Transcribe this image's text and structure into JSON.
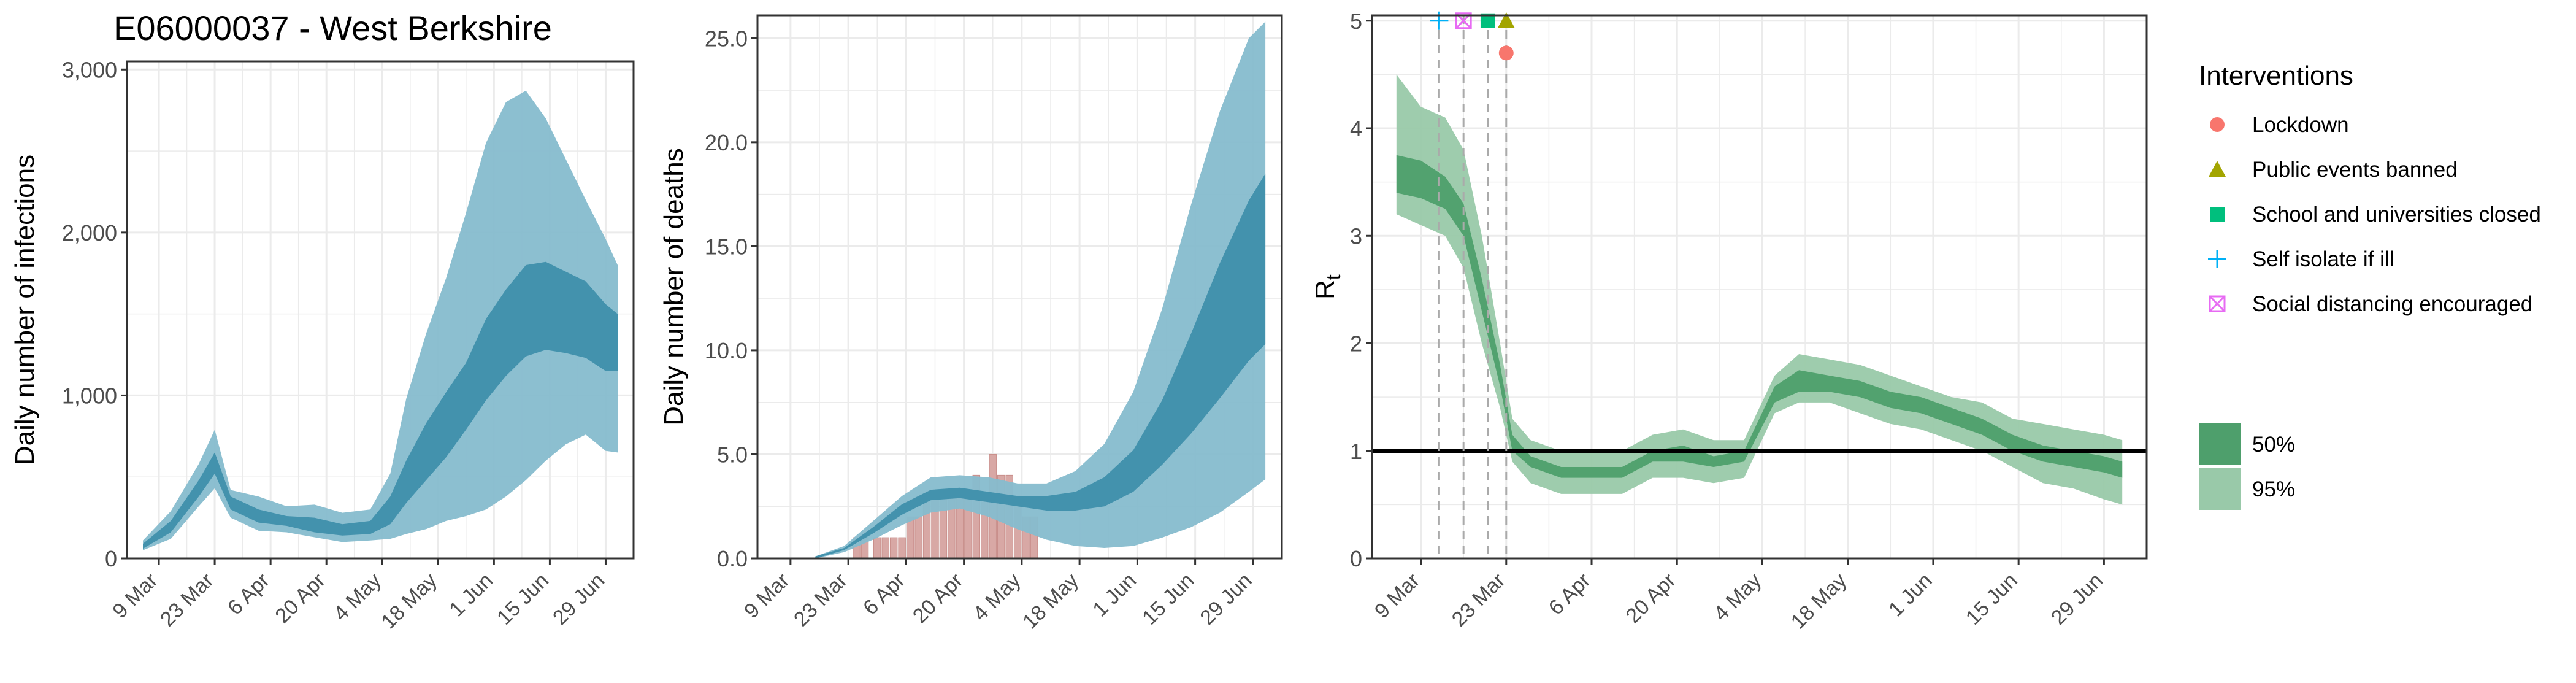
{
  "figure_title": "E06000037 - West Berkshire",
  "colors": {
    "band_outer": "#86BCCD",
    "band_inner": "#3F8FAB",
    "deaths_bar": "#D8A8A5",
    "rt_outer": "#99C9A9",
    "rt_inner": "#4E9F6C",
    "rt_line": "#000000",
    "lockdown": "#F8766D",
    "public_events": "#A3A500",
    "school": "#00BF7D",
    "self_isolate": "#00B0F6",
    "social_distancing": "#E76BF3",
    "panel_border": "#333333",
    "grid": "#EBEBEB"
  },
  "chart_data": [
    {
      "type": "area",
      "title": "",
      "ylabel": "Daily number of infections",
      "xlabel": "",
      "x_tick_labels": [
        "9 Mar",
        "23 Mar",
        "6 Apr",
        "20 Apr",
        "4 May",
        "18 May",
        "1 Jun",
        "15 Jun",
        "29 Jun"
      ],
      "y_tick_labels": [
        "0",
        "1,000",
        "2,000",
        "3,000"
      ],
      "xlim": [
        "2020-03-01",
        "2020-07-06"
      ],
      "ylim": [
        0,
        3050
      ],
      "dates": [
        "2020-03-05",
        "2020-03-12",
        "2020-03-19",
        "2020-03-23",
        "2020-03-27",
        "2020-04-03",
        "2020-04-10",
        "2020-04-17",
        "2020-04-24",
        "2020-05-01",
        "2020-05-06",
        "2020-05-10",
        "2020-05-15",
        "2020-05-20",
        "2020-05-25",
        "2020-05-30",
        "2020-06-04",
        "2020-06-09",
        "2020-06-14",
        "2020-06-19",
        "2020-06-24",
        "2020-06-29",
        "2020-07-02"
      ],
      "series": [
        {
          "name": "95%",
          "lower": [
            50,
            120,
            320,
            430,
            250,
            170,
            160,
            130,
            100,
            110,
            120,
            150,
            180,
            230,
            260,
            300,
            380,
            480,
            600,
            700,
            760,
            660,
            650
          ],
          "upper": [
            110,
            290,
            580,
            790,
            420,
            380,
            320,
            330,
            280,
            300,
            520,
            980,
            1380,
            1720,
            2120,
            2550,
            2800,
            2870,
            2700,
            2450,
            2200,
            1960,
            1800
          ]
        },
        {
          "name": "50%",
          "lower": [
            60,
            160,
            380,
            520,
            300,
            220,
            200,
            160,
            140,
            150,
            210,
            340,
            480,
            620,
            790,
            970,
            1120,
            1240,
            1280,
            1260,
            1230,
            1150,
            1150
          ],
          "upper": [
            90,
            230,
            480,
            650,
            380,
            300,
            260,
            250,
            210,
            230,
            380,
            600,
            830,
            1020,
            1200,
            1470,
            1650,
            1800,
            1820,
            1760,
            1700,
            1560,
            1500
          ]
        }
      ]
    },
    {
      "type": "area",
      "title": "",
      "ylabel": "Daily number of deaths",
      "xlabel": "",
      "x_tick_labels": [
        "9 Mar",
        "23 Mar",
        "6 Apr",
        "20 Apr",
        "4 May",
        "18 May",
        "1 Jun",
        "15 Jun",
        "29 Jun"
      ],
      "y_tick_labels": [
        "0.0",
        "5.0",
        "10.0",
        "15.0",
        "20.0",
        "25.0"
      ],
      "xlim": [
        "2020-03-01",
        "2020-07-06"
      ],
      "ylim": [
        0,
        26.1
      ],
      "dates": [
        "2020-03-15",
        "2020-03-22",
        "2020-03-29",
        "2020-04-05",
        "2020-04-12",
        "2020-04-19",
        "2020-04-26",
        "2020-05-03",
        "2020-05-10",
        "2020-05-17",
        "2020-05-24",
        "2020-05-31",
        "2020-06-07",
        "2020-06-14",
        "2020-06-21",
        "2020-06-28",
        "2020-07-02"
      ],
      "series": [
        {
          "name": "95%",
          "lower": [
            0,
            0.3,
            0.9,
            1.6,
            2.2,
            2.4,
            2.0,
            1.4,
            0.9,
            0.6,
            0.5,
            0.6,
            1.0,
            1.5,
            2.2,
            3.2,
            3.8
          ],
          "upper": [
            0.1,
            0.6,
            1.8,
            3.0,
            3.9,
            4.0,
            3.9,
            3.6,
            3.6,
            4.2,
            5.5,
            8.0,
            12.0,
            17.0,
            21.5,
            25.0,
            25.8
          ]
        },
        {
          "name": "50%",
          "lower": [
            0,
            0.4,
            1.2,
            2.1,
            2.8,
            2.9,
            2.7,
            2.5,
            2.3,
            2.3,
            2.5,
            3.2,
            4.5,
            6.0,
            7.7,
            9.5,
            10.3
          ],
          "upper": [
            0.1,
            0.5,
            1.5,
            2.6,
            3.3,
            3.4,
            3.2,
            3.0,
            3.0,
            3.2,
            3.9,
            5.2,
            7.6,
            10.8,
            14.2,
            17.2,
            18.5
          ]
        }
      ],
      "bars": {
        "name": "Observed deaths",
        "dates": [
          "2020-03-25",
          "2020-03-27",
          "2020-03-30",
          "2020-04-01",
          "2020-04-03",
          "2020-04-05",
          "2020-04-07",
          "2020-04-09",
          "2020-04-11",
          "2020-04-13",
          "2020-04-15",
          "2020-04-17",
          "2020-04-19",
          "2020-04-21",
          "2020-04-23",
          "2020-04-25",
          "2020-04-27",
          "2020-04-29",
          "2020-05-01",
          "2020-05-03",
          "2020-05-05",
          "2020-05-07"
        ],
        "values": [
          1,
          1,
          1,
          1,
          1,
          1,
          2,
          2,
          3,
          3,
          3,
          3,
          3,
          3,
          4,
          3,
          5,
          4,
          4,
          3,
          2,
          2
        ]
      }
    },
    {
      "type": "area",
      "title": "",
      "ylabel": "R",
      "ylabel_subscript": "t",
      "xlabel": "",
      "x_tick_labels": [
        "9 Mar",
        "23 Mar",
        "6 Apr",
        "20 Apr",
        "4 May",
        "18 May",
        "1 Jun",
        "15 Jun",
        "29 Jun"
      ],
      "y_tick_labels": [
        "0",
        "1",
        "2",
        "3",
        "4",
        "5"
      ],
      "xlim": [
        "2020-03-01",
        "2020-07-06"
      ],
      "ylim": [
        0,
        5.05
      ],
      "reference_line": 1,
      "dates": [
        "2020-03-05",
        "2020-03-09",
        "2020-03-13",
        "2020-03-16",
        "2020-03-19",
        "2020-03-22",
        "2020-03-24",
        "2020-03-27",
        "2020-04-01",
        "2020-04-06",
        "2020-04-11",
        "2020-04-16",
        "2020-04-21",
        "2020-04-26",
        "2020-05-01",
        "2020-05-06",
        "2020-05-10",
        "2020-05-15",
        "2020-05-20",
        "2020-05-25",
        "2020-05-30",
        "2020-06-04",
        "2020-06-09",
        "2020-06-14",
        "2020-06-19",
        "2020-06-24",
        "2020-06-29",
        "2020-07-02"
      ],
      "series": [
        {
          "name": "95%",
          "lower": [
            3.2,
            3.1,
            3.0,
            2.7,
            2.0,
            1.4,
            0.9,
            0.7,
            0.6,
            0.6,
            0.6,
            0.75,
            0.75,
            0.7,
            0.75,
            1.35,
            1.45,
            1.45,
            1.35,
            1.25,
            1.2,
            1.1,
            1.0,
            0.85,
            0.7,
            0.65,
            0.55,
            0.5
          ],
          "upper": [
            4.5,
            4.2,
            4.1,
            3.8,
            3.0,
            2.0,
            1.3,
            1.1,
            1.0,
            1.0,
            1.0,
            1.15,
            1.2,
            1.1,
            1.1,
            1.7,
            1.9,
            1.85,
            1.8,
            1.7,
            1.6,
            1.5,
            1.45,
            1.3,
            1.25,
            1.2,
            1.15,
            1.1
          ]
        },
        {
          "name": "50%",
          "lower": [
            3.4,
            3.35,
            3.25,
            3.0,
            2.3,
            1.6,
            1.0,
            0.85,
            0.75,
            0.75,
            0.75,
            0.9,
            0.9,
            0.85,
            0.9,
            1.45,
            1.55,
            1.55,
            1.5,
            1.4,
            1.35,
            1.25,
            1.15,
            1.0,
            0.9,
            0.85,
            0.8,
            0.75
          ],
          "upper": [
            3.75,
            3.7,
            3.55,
            3.3,
            2.6,
            1.8,
            1.15,
            0.95,
            0.85,
            0.85,
            0.85,
            1.0,
            1.05,
            0.95,
            1.0,
            1.6,
            1.75,
            1.7,
            1.65,
            1.55,
            1.5,
            1.4,
            1.3,
            1.15,
            1.05,
            1.0,
            0.95,
            0.9
          ]
        }
      ],
      "interventions": [
        {
          "name": "Self isolate if ill",
          "date": "2020-03-12",
          "y": 5.0,
          "shape": "plus",
          "color_key": "self_isolate"
        },
        {
          "name": "Social distancing encouraged",
          "date": "2020-03-16",
          "y": 5.0,
          "shape": "crossed-square",
          "color_key": "social_distancing"
        },
        {
          "name": "School and universities closed",
          "date": "2020-03-20",
          "y": 5.0,
          "shape": "square",
          "color_key": "school"
        },
        {
          "name": "Public events banned",
          "date": "2020-03-23",
          "y": 5.0,
          "shape": "triangle",
          "color_key": "public_events"
        },
        {
          "name": "Lockdown",
          "date": "2020-03-23",
          "y": 4.7,
          "shape": "circle",
          "color_key": "lockdown"
        }
      ]
    }
  ],
  "legend": {
    "interventions_title": "Interventions",
    "interventions": [
      {
        "label": "Lockdown",
        "shape": "circle",
        "color_key": "lockdown"
      },
      {
        "label": "Public events banned",
        "shape": "triangle",
        "color_key": "public_events"
      },
      {
        "label": "School and universities closed",
        "shape": "square",
        "color_key": "school"
      },
      {
        "label": "Self isolate if ill",
        "shape": "plus",
        "color_key": "self_isolate"
      },
      {
        "label": "Social distancing encouraged",
        "shape": "crossed-square",
        "color_key": "social_distancing"
      }
    ],
    "bands": [
      {
        "label": "50%",
        "color_key": "rt_inner"
      },
      {
        "label": "95%",
        "color_key": "rt_outer"
      }
    ]
  }
}
